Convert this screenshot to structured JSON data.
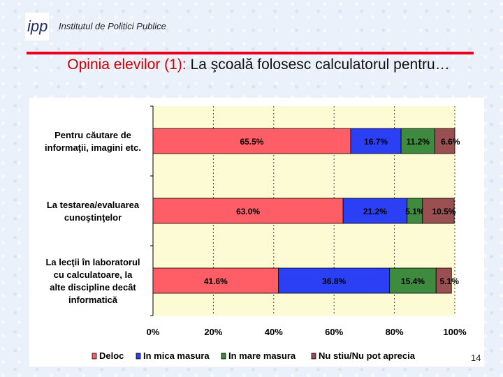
{
  "header": {
    "institute": "Institutul de Politici Publice",
    "logo_text": "ipp",
    "title_highlight": "Opinia elevilor (1):",
    "title_rest": " La şcoală folosesc calculatorul pentru…"
  },
  "page_number": "14",
  "chart_data": {
    "type": "bar",
    "orientation": "horizontal",
    "stacked": "percent",
    "categories": [
      [
        "Pentru căutare de",
        "informaţii, imagini etc."
      ],
      [
        "La testarea/evaluarea",
        "cunoştinţelor"
      ],
      [
        "La lecţii în laboratorul",
        "cu calculatoare, la",
        "alte discipline decât",
        "informatică"
      ]
    ],
    "series": [
      {
        "name": "Deloc",
        "color": "#ff5e66",
        "values": [
          65.5,
          63.0,
          41.6
        ]
      },
      {
        "name": "In mica masura",
        "color": "#2b3ff5",
        "values": [
          16.7,
          21.2,
          36.8
        ]
      },
      {
        "name": "In mare masura",
        "color": "#3e8a3e",
        "values": [
          11.2,
          5.1,
          15.4
        ]
      },
      {
        "name": "Nu stiu/Nu pot aprecia",
        "color": "#9a5050",
        "values": [
          6.6,
          10.5,
          5.1
        ]
      }
    ],
    "data_labels": [
      [
        "65.5%",
        "16.7%",
        "11.2%",
        "6.6%"
      ],
      [
        "63.0%",
        "21.2%",
        "5.1%",
        "10.5%"
      ],
      [
        "41.6%",
        "36.8%",
        "15.4%",
        "5.1%"
      ]
    ],
    "xticks": [
      "0%",
      "20%",
      "40%",
      "60%",
      "80%",
      "100%"
    ],
    "xlim": [
      0,
      100
    ],
    "plot_background": "#fdfbd3",
    "legend_position": "bottom",
    "grid": "dashed-vertical"
  }
}
